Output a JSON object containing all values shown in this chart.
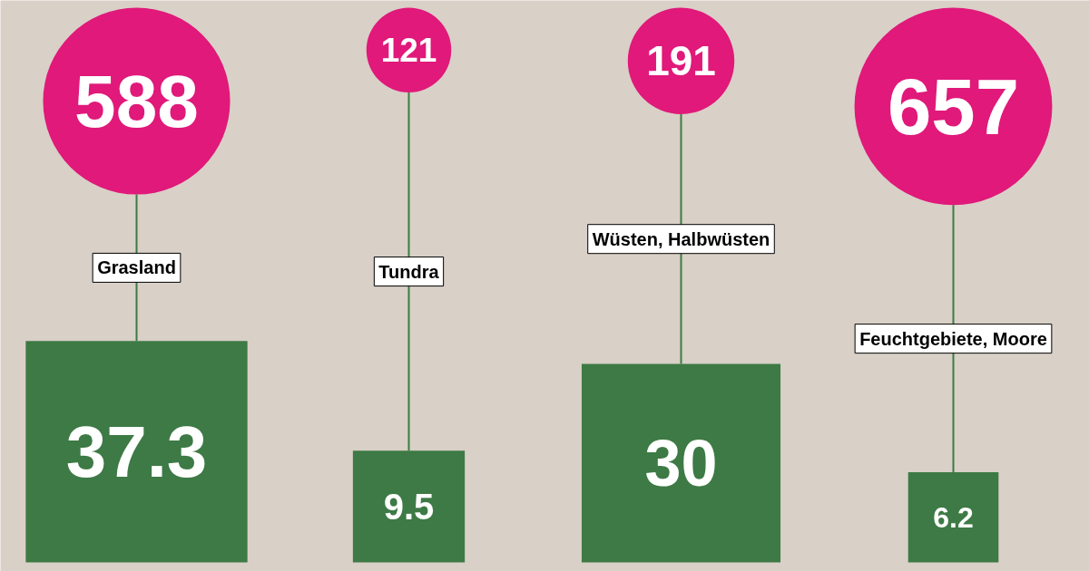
{
  "chart_data": {
    "type": "other",
    "categories": [
      "Grasland",
      "Tundra",
      "Wüsten, Halbwüsten",
      "Feuchtgebiete, Moore"
    ],
    "series": [
      {
        "type": "bubble",
        "color": "#e0197a",
        "values": [
          588,
          121,
          191,
          657
        ]
      },
      {
        "type": "bar",
        "color": "#3d7a45",
        "values": [
          37.3,
          9.5,
          30,
          6.2
        ]
      }
    ],
    "data_labels": true
  }
}
